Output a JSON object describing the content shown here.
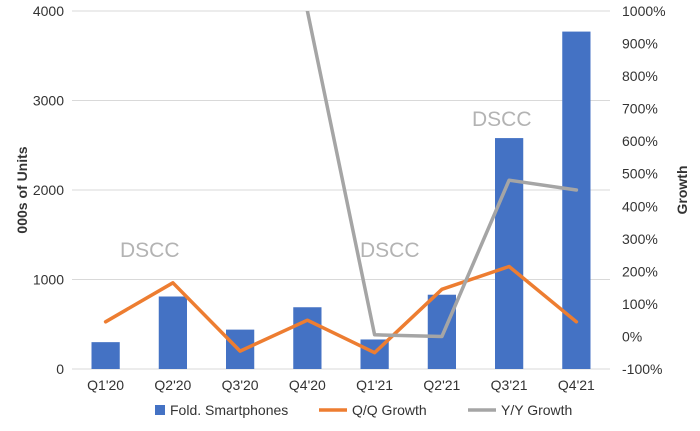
{
  "chart_data": {
    "type": "bar",
    "categories": [
      "Q1'20",
      "Q2'20",
      "Q3'20",
      "Q4'20",
      "Q1'21",
      "Q2'21",
      "Q3'21",
      "Q4'21"
    ],
    "series": [
      {
        "name": "Fold. Smartphones",
        "type": "bar",
        "axis": "left",
        "color": "#4472C4",
        "values": [
          300,
          810,
          440,
          690,
          330,
          830,
          2580,
          3770
        ]
      },
      {
        "name": "Q/Q Growth",
        "type": "line",
        "axis": "right",
        "color": "#ED7D31",
        "values": [
          45,
          165,
          -45,
          50,
          -50,
          145,
          215,
          45
        ]
      },
      {
        "name": "Y/Y Growth",
        "type": "line",
        "axis": "right",
        "color": "#A5A5A5",
        "values": [
          null,
          null,
          null,
          1000,
          5,
          0,
          480,
          450
        ],
        "note": "Q4'20 value runs off the top of the axis"
      }
    ],
    "ylabel": "000s of Units",
    "ylabel_right": "Growth",
    "ylim": [
      0,
      4000
    ],
    "ylim_right": [
      -100,
      1000
    ],
    "yticks": [
      "0",
      "1000",
      "2000",
      "3000",
      "4000"
    ],
    "yticks_right": [
      "-100%",
      "0%",
      "100%",
      "200%",
      "300%",
      "400%",
      "500%",
      "600%",
      "700%",
      "800%",
      "900%",
      "1000%"
    ],
    "grid": true,
    "legend_position": "bottom",
    "watermarks": [
      "DSCC",
      "DSCC",
      "DSCC"
    ]
  }
}
